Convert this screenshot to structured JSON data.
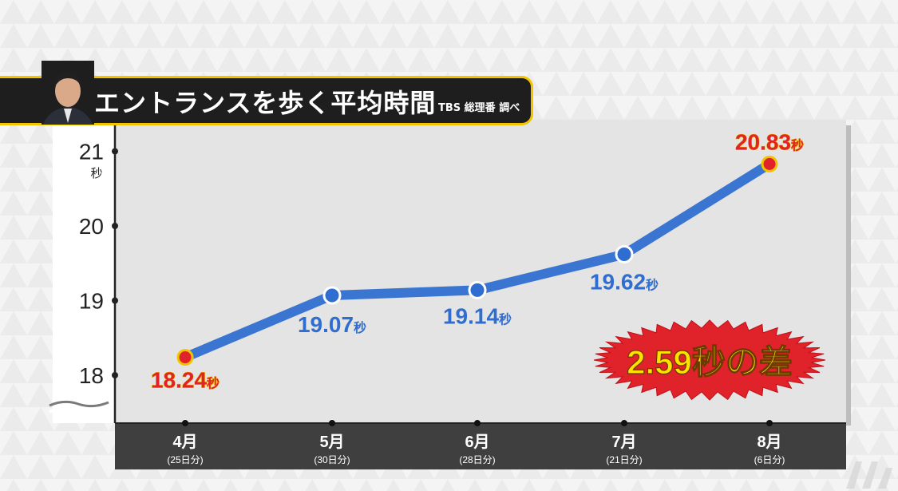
{
  "title": "エントランスを歩く平均時間",
  "source": "TBS 総理番 調べ",
  "unit": "秒",
  "difference_label": "2.59秒の差",
  "chart_data": {
    "type": "line",
    "title": "エントランスを歩く平均時間",
    "categories": [
      "4月",
      "5月",
      "6月",
      "7月",
      "8月"
    ],
    "category_notes": [
      "(25日分)",
      "(30日分)",
      "(28日分)",
      "(21日分)",
      "(6日分)"
    ],
    "series": [
      {
        "values": [
          18.24,
          19.07,
          19.14,
          19.62,
          20.83
        ]
      }
    ],
    "value_labels": [
      "18.24",
      "19.07",
      "19.14",
      "19.62",
      "20.83"
    ],
    "point_colors": [
      "#e0222a",
      "#2f6ed0",
      "#2f6ed0",
      "#2f6ed0",
      "#e0222a"
    ],
    "value_label_colors": [
      "#e0222a",
      "#2f6ed0",
      "#2f6ed0",
      "#2f6ed0",
      "#e0222a"
    ],
    "y_ticks": [
      18,
      19,
      20,
      21
    ],
    "y_tick_labels": [
      "18",
      "19",
      "20",
      "21"
    ],
    "y_unit_label": "秒",
    "ylim": [
      17.4,
      21.4
    ],
    "axis_break": true,
    "grid": false,
    "line_color": "#3a76d1",
    "annotation": "2.59秒の差"
  }
}
